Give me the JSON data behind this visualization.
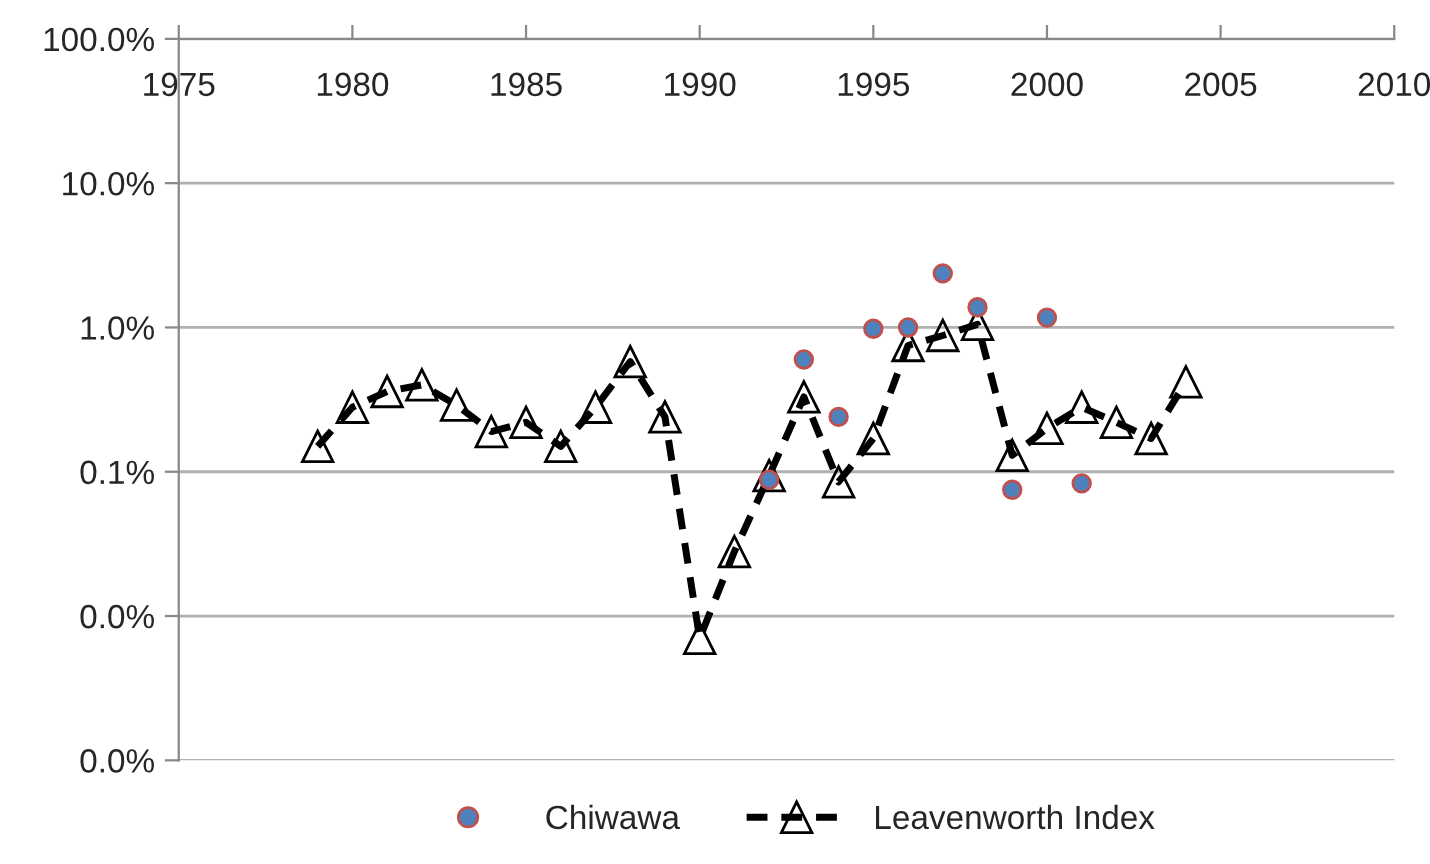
{
  "chart_data": {
    "type": "scatter",
    "series": [
      {
        "name": "Chiwawa",
        "color": "#4f81bd",
        "marker": "circle",
        "x": [
          1992,
          1993,
          1994,
          1995,
          1996,
          1997,
          1998,
          1999,
          2000,
          2001
        ],
        "values": [
          0.088,
          0.6,
          0.24,
          0.98,
          1.0,
          2.37,
          1.38,
          0.075,
          1.17,
          0.083
        ]
      },
      {
        "name": "Leavenworth Index",
        "type": "line",
        "color": "#000000",
        "marker": "triangle",
        "line_style": "dashed",
        "x": [
          1979,
          1980,
          1981,
          1982,
          1983,
          1984,
          1985,
          1986,
          1987,
          1988,
          1989,
          1990,
          1991,
          1992,
          1993,
          1994,
          1995,
          1996,
          1997,
          1998,
          1999,
          2000,
          2001,
          2002,
          2003,
          2004
        ],
        "values": [
          0.15,
          0.28,
          0.36,
          0.4,
          0.29,
          0.19,
          0.22,
          0.15,
          0.28,
          0.58,
          0.24,
          0.007,
          0.028,
          0.094,
          0.33,
          0.085,
          0.17,
          0.75,
          0.88,
          1.05,
          0.13,
          0.2,
          0.28,
          0.22,
          0.17,
          0.42
        ]
      }
    ],
    "log": "y",
    "xlim": [
      1975,
      2010
    ],
    "xticks": [
      1975,
      1980,
      1985,
      1990,
      1995,
      2000,
      2005,
      2010
    ],
    "ylim": [
      0.001,
      100
    ],
    "yticks": [
      {
        "value": 0.001,
        "label": "0.0%"
      },
      {
        "value": 0.01,
        "label": "0.0%"
      },
      {
        "value": 0.1,
        "label": "0.1%"
      },
      {
        "value": 1,
        "label": "1.0%"
      },
      {
        "value": 10,
        "label": "10.0%"
      },
      {
        "value": 100,
        "label": "100.0%"
      }
    ],
    "grid": "y",
    "legend": "bottom"
  }
}
